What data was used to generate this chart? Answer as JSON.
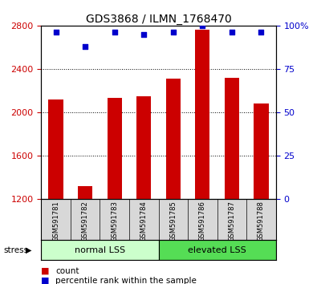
{
  "title": "GDS3868 / ILMN_1768470",
  "samples": [
    "GSM591781",
    "GSM591782",
    "GSM591783",
    "GSM591784",
    "GSM591785",
    "GSM591786",
    "GSM591787",
    "GSM591788"
  ],
  "counts": [
    2120,
    1320,
    2130,
    2150,
    2310,
    2760,
    2320,
    2080
  ],
  "percentiles": [
    96,
    88,
    96,
    95,
    96,
    100,
    96,
    96
  ],
  "y_min": 1200,
  "y_max": 2800,
  "y_ticks": [
    1200,
    1600,
    2000,
    2400,
    2800
  ],
  "right_y_ticks": [
    0,
    25,
    50,
    75,
    100
  ],
  "bar_color": "#cc0000",
  "dot_color": "#0000cc",
  "normal_label": "normal LSS",
  "elevated_label": "elevated LSS",
  "normal_color": "#ccffcc",
  "elevated_color": "#55dd55",
  "stress_label": "stress",
  "left_tick_color": "#cc0000",
  "right_tick_color": "#0000cc",
  "legend_count_label": "count",
  "legend_pct_label": "percentile rank within the sample",
  "bar_width": 0.5
}
